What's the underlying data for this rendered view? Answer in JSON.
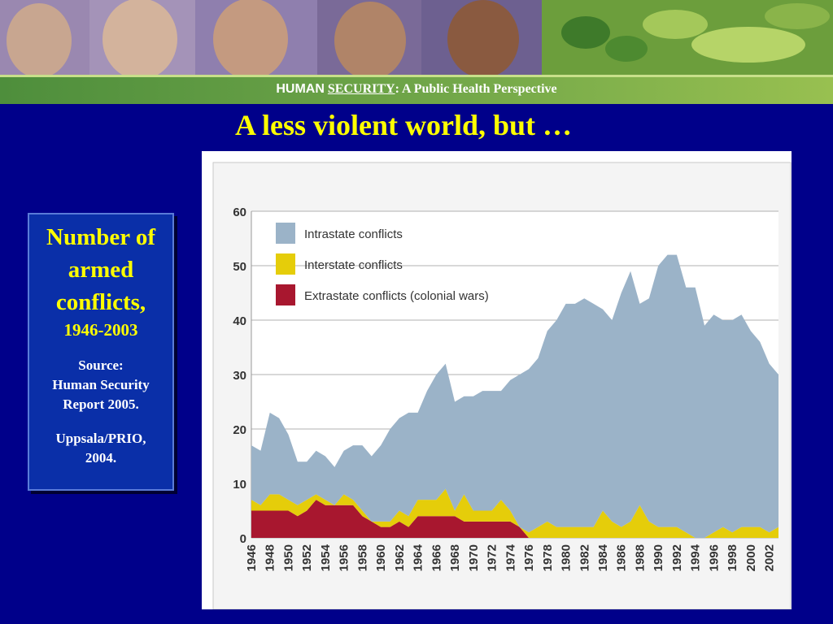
{
  "header": {
    "brand_part1": "HUMAN",
    "brand_part2": "SECURITY",
    "subtitle": ": A Public Health Perspective"
  },
  "slide": {
    "title": "A less violent world, but …"
  },
  "caption": {
    "line1": "Number of",
    "line2": "armed",
    "line3": "conflicts,",
    "years": "1946-2003",
    "source_label": "Source:",
    "source_1": "Human Security",
    "source_2": "Report 2005.",
    "source_3": "Uppsala/PRIO,",
    "source_4": "2004."
  },
  "colors": {
    "background": "#00008a",
    "title": "#ffff00",
    "intrastate": "#9bb3c8",
    "interstate": "#e5cd0a",
    "extrastate": "#a8172f"
  },
  "chart_data": {
    "type": "area",
    "stacked": true,
    "title": "",
    "xlabel": "",
    "ylabel": "",
    "ylim": [
      0,
      60
    ],
    "yticks": [
      0,
      10,
      20,
      30,
      40,
      50,
      60
    ],
    "x": [
      1946,
      1947,
      1948,
      1949,
      1950,
      1951,
      1952,
      1953,
      1954,
      1955,
      1956,
      1957,
      1958,
      1959,
      1960,
      1961,
      1962,
      1963,
      1964,
      1965,
      1966,
      1967,
      1968,
      1969,
      1970,
      1971,
      1972,
      1973,
      1974,
      1975,
      1976,
      1977,
      1978,
      1979,
      1980,
      1981,
      1982,
      1983,
      1984,
      1985,
      1986,
      1987,
      1988,
      1989,
      1990,
      1991,
      1992,
      1993,
      1994,
      1995,
      1996,
      1997,
      1998,
      1999,
      2000,
      2001,
      2002,
      2003
    ],
    "xtick_labels": [
      "1946",
      "1948",
      "1950",
      "1952",
      "1954",
      "1956",
      "1958",
      "1960",
      "1962",
      "1964",
      "1966",
      "1968",
      "1970",
      "1972",
      "1974",
      "1976",
      "1978",
      "1980",
      "1982",
      "1984",
      "1986",
      "1988",
      "1990",
      "1992",
      "1994",
      "1996",
      "1998",
      "2000",
      "2002"
    ],
    "grid": "horizontal",
    "legend_position": "top-left",
    "series": [
      {
        "name": "Extrastate conflicts (colonial wars)",
        "color": "#a8172f",
        "values": [
          5,
          5,
          5,
          5,
          5,
          4,
          5,
          7,
          6,
          6,
          6,
          6,
          4,
          3,
          2,
          2,
          3,
          2,
          4,
          4,
          4,
          4,
          4,
          3,
          3,
          3,
          3,
          3,
          3,
          2,
          0,
          0,
          0,
          0,
          0,
          0,
          0,
          0,
          0,
          0,
          0,
          0,
          0,
          0,
          0,
          0,
          0,
          0,
          0,
          0,
          0,
          0,
          0,
          0,
          0,
          0,
          0,
          0
        ]
      },
      {
        "name": "Interstate conflicts",
        "color": "#e5cd0a",
        "values": [
          2,
          1,
          3,
          3,
          2,
          2,
          2,
          1,
          1,
          0,
          2,
          1,
          1,
          0,
          1,
          1,
          2,
          2,
          3,
          3,
          3,
          5,
          1,
          5,
          2,
          2,
          2,
          4,
          2,
          0,
          1,
          2,
          3,
          2,
          2,
          2,
          2,
          2,
          5,
          3,
          2,
          3,
          6,
          3,
          2,
          2,
          2,
          1,
          0,
          0,
          1,
          2,
          1,
          2,
          2,
          2,
          1,
          2
        ]
      },
      {
        "name": "Intrastate conflicts",
        "color": "#9bb3c8",
        "values": [
          10,
          10,
          15,
          14,
          12,
          8,
          7,
          8,
          8,
          7,
          8,
          10,
          12,
          12,
          14,
          17,
          17,
          19,
          16,
          20,
          23,
          23,
          20,
          18,
          21,
          22,
          22,
          20,
          24,
          28,
          30,
          31,
          35,
          38,
          41,
          41,
          42,
          41,
          37,
          37,
          43,
          46,
          37,
          41,
          48,
          50,
          50,
          45,
          46,
          39,
          40,
          38,
          39,
          39,
          36,
          34,
          31,
          28
        ]
      }
    ]
  }
}
